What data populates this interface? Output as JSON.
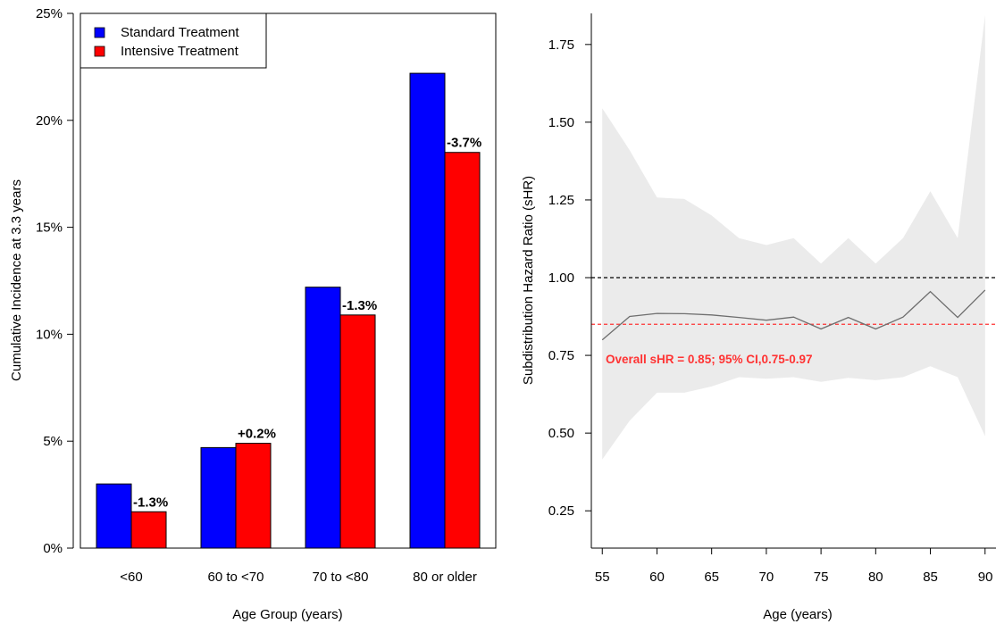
{
  "colors": {
    "standard": "#0000FF",
    "intensive": "#FF0000",
    "ci_band": "#EBEBEB",
    "shr_line": "#6E6E6E",
    "reference_line": "#000000",
    "overall_line": "#FF3333"
  },
  "chart_data": [
    {
      "type": "bar",
      "categories": [
        "<60",
        "60 to <70",
        "70 to <80",
        "80 or older"
      ],
      "series": [
        {
          "name": "Standard Treatment",
          "values": [
            3.0,
            4.7,
            12.2,
            22.2
          ]
        },
        {
          "name": "Intensive Treatment",
          "values": [
            1.7,
            4.9,
            10.9,
            18.5
          ]
        }
      ],
      "differences": [
        "-1.3%",
        "+0.2%",
        "-1.3%",
        "-3.7%"
      ],
      "xlabel": "Age Group (years)",
      "ylabel": "Cumulative Incidence at 3.3 years",
      "ylim": [
        0,
        25
      ],
      "yticks": [
        0,
        5,
        10,
        15,
        20,
        25
      ],
      "ytick_labels": [
        "0%",
        "5%",
        "10%",
        "15%",
        "20%",
        "25%"
      ],
      "legend_position": "top-left",
      "grid": false
    },
    {
      "type": "line",
      "x": [
        55,
        57.5,
        60,
        62.5,
        65,
        67.5,
        70,
        72.5,
        75,
        77.5,
        80,
        82.5,
        85,
        87.5,
        90
      ],
      "series": [
        {
          "values": [
            0.8,
            0.875,
            0.885,
            0.884,
            0.88,
            0.872,
            0.863,
            0.873,
            0.835,
            0.872,
            0.835,
            0.873,
            0.955,
            0.872,
            0.96
          ]
        }
      ],
      "ci_lower": [
        0.415,
        0.54,
        0.63,
        0.63,
        0.65,
        0.68,
        0.675,
        0.68,
        0.665,
        0.678,
        0.67,
        0.68,
        0.715,
        0.68,
        0.49
      ],
      "ci_upper": [
        1.545,
        1.41,
        1.258,
        1.253,
        1.2,
        1.127,
        1.105,
        1.127,
        1.045,
        1.127,
        1.045,
        1.127,
        1.278,
        1.127,
        1.845
      ],
      "reference_line": 1.0,
      "overall_shr": 0.85,
      "overall_label": "Overall sHR = 0.85; 95% CI,0.75-0.97",
      "xlabel": "Age (years)",
      "ylabel": "Subdistribution Hazard Ratio (sHR)",
      "xlim": [
        54,
        91
      ],
      "ylim": [
        0.13,
        1.85
      ],
      "xticks": [
        55,
        60,
        65,
        70,
        75,
        80,
        85,
        90
      ],
      "yticks": [
        0.25,
        0.5,
        0.75,
        1.0,
        1.25,
        1.5,
        1.75
      ],
      "ytick_labels": [
        "0.25",
        "0.50",
        "0.75",
        "1.00",
        "1.25",
        "1.50",
        "1.75"
      ],
      "grid": false
    }
  ]
}
